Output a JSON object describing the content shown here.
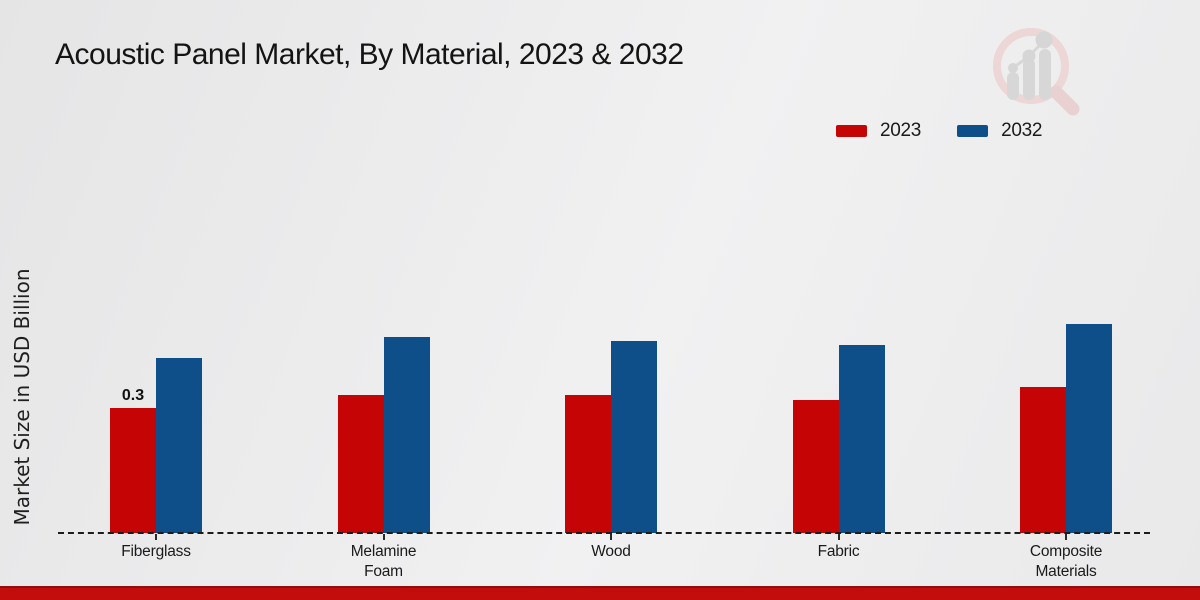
{
  "title": "Acoustic Panel Market, By Material, 2023 & 2032",
  "ylabel": "Market Size in USD Billion",
  "colors": {
    "series_2023": "#c50505",
    "series_2032": "#0e4e89",
    "footer_strip": "#c30d0d",
    "baseline": "#1c1c1c"
  },
  "legend": {
    "position": "top-right",
    "items": [
      {
        "label": "2023",
        "color": "#c50505"
      },
      {
        "label": "2032",
        "color": "#0e4e89"
      }
    ]
  },
  "chart_data": {
    "type": "bar",
    "title": "Acoustic Panel Market, By Material, 2023 & 2032",
    "xlabel": "",
    "ylabel": "Market Size in USD Billion",
    "categories": [
      "Fiberglass",
      "Melamine Foam",
      "Wood",
      "Fabric",
      "Composite Materials"
    ],
    "tick_labels": [
      "Fiberglass",
      "Melamine\nFoam",
      "Wood",
      "Fabric",
      "Composite\nMaterials"
    ],
    "series": [
      {
        "name": "2023",
        "color": "#c50505",
        "values": [
          0.3,
          0.33,
          0.33,
          0.32,
          0.35
        ]
      },
      {
        "name": "2032",
        "color": "#0e4e89",
        "values": [
          0.42,
          0.47,
          0.46,
          0.45,
          0.5
        ]
      }
    ],
    "annotations": [
      {
        "series": "2023",
        "category": "Fiberglass",
        "text": "0.3"
      }
    ],
    "y_axis_ticks_visible": false,
    "grid": false,
    "baseline_style": "dashed",
    "legend_position": "top-right"
  },
  "watermark": {
    "name": "magnifier-bar-chart-logo"
  }
}
